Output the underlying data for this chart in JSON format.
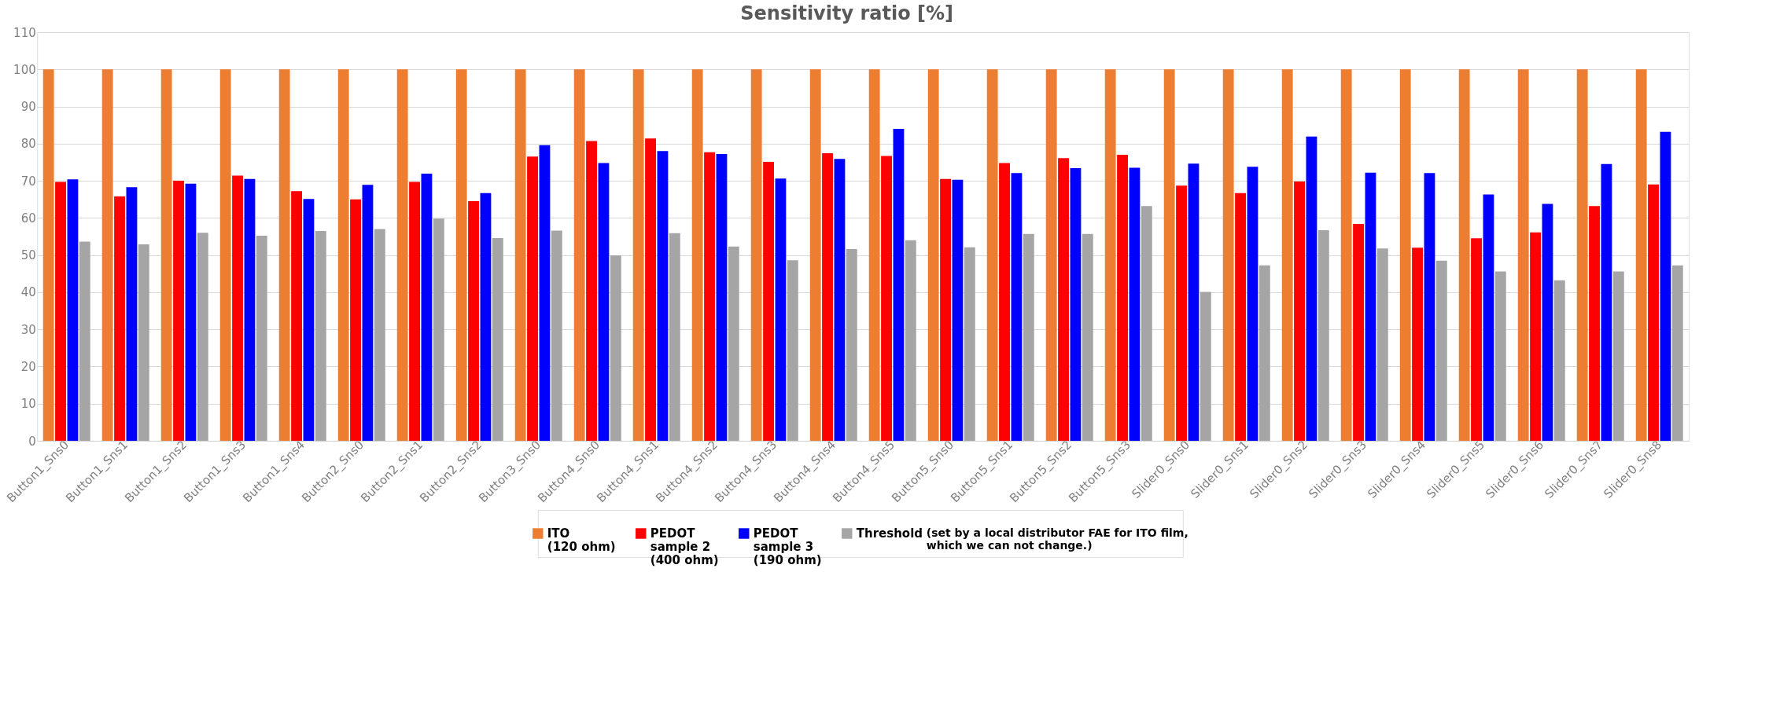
{
  "chart_data": {
    "type": "bar",
    "title": "Sensitivity ratio [%]",
    "categories": [
      "Button1_Sns0",
      "Button1_Sns1",
      "Button1_Sns2",
      "Button1_Sns3",
      "Button1_Sns4",
      "Button2_Sns0",
      "Button2_Sns1",
      "Button2_Sns2",
      "Button3_Sns0",
      "Button4_Sns0",
      "Button4_Sns1",
      "Button4_Sns2",
      "Button4_Sns3",
      "Button4_Sns4",
      "Button4_Sns5",
      "Button5_Sns0",
      "Button5_Sns1",
      "Button5_Sns2",
      "Button5_Sns3",
      "Slider0_Sns0",
      "Slider0_Sns1",
      "Slider0_Sns2",
      "Slider0_Sns3",
      "Slider0_Sns4",
      "Slider0_Sns5",
      "Slider0_Sns6",
      "Slider0_Sns7",
      "Slider0_Sns8"
    ],
    "series": [
      {
        "name": "ITO\n(120 ohm)",
        "color": "#ed7d31",
        "values": [
          100,
          100,
          100,
          100,
          100,
          100,
          100,
          100,
          100,
          100,
          100,
          100,
          100,
          100,
          100,
          100,
          100,
          100,
          100,
          100,
          100,
          100,
          100,
          100,
          100,
          100,
          100,
          100
        ]
      },
      {
        "name": "PEDOT\nsample 2\n(400 ohm)",
        "color": "#ff0000",
        "values": [
          69.7,
          65.8,
          70.0,
          71.4,
          67.2,
          65.0,
          69.7,
          64.5,
          76.5,
          80.7,
          81.4,
          77.7,
          75.1,
          77.4,
          76.7,
          70.5,
          74.8,
          76.1,
          77.0,
          68.7,
          66.7,
          69.8,
          58.4,
          52.0,
          54.5,
          56.1,
          63.2,
          69.0
        ]
      },
      {
        "name": "PEDOT\nsample 3\n(190 ohm)",
        "color": "#0000ff",
        "values": [
          70.4,
          68.3,
          69.2,
          70.5,
          65.1,
          68.9,
          71.9,
          66.7,
          79.6,
          74.8,
          78.0,
          77.2,
          70.6,
          75.9,
          84.0,
          70.3,
          72.1,
          73.4,
          73.5,
          74.6,
          73.8,
          81.9,
          72.2,
          72.1,
          66.3,
          63.8,
          74.5,
          83.2
        ]
      },
      {
        "name": "Threshold",
        "color": "#a5a5a5",
        "values": [
          53.6,
          52.9,
          56.0,
          55.2,
          56.5,
          57.0,
          59.8,
          54.6,
          56.6,
          49.9,
          55.9,
          52.3,
          48.6,
          51.6,
          54.0,
          52.1,
          55.7,
          55.7,
          63.2,
          40.1,
          47.2,
          56.7,
          51.8,
          48.5,
          45.6,
          43.2,
          45.6,
          47.2
        ]
      }
    ],
    "annotations": [
      "(set by a local distributor FAE for ITO film,\nwhich we can not change.)"
    ],
    "ylim": [
      0,
      110
    ],
    "yticks": [
      0,
      10,
      20,
      30,
      40,
      50,
      60,
      70,
      80,
      90,
      100,
      110
    ],
    "grid": "y",
    "legend": "bottom"
  }
}
